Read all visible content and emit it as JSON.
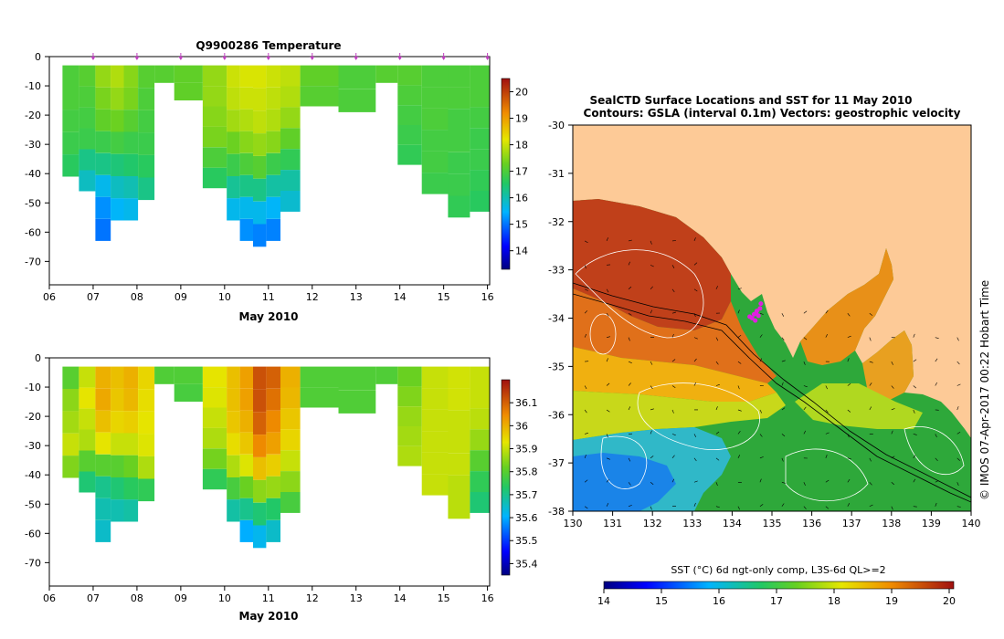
{
  "title": "Q9900286  Temperature",
  "chart_data": [
    {
      "type": "heatmap",
      "name": "temperature-section",
      "title": "Q9900286  Temperature",
      "xlabel": "May 2010",
      "ylabel": "",
      "x_ticks": [
        "06",
        "07",
        "08",
        "09",
        "10",
        "11",
        "12",
        "13",
        "14",
        "15",
        "16"
      ],
      "xlim": [
        6,
        16.05
      ],
      "y_ticks": [
        "0",
        "-10",
        "-20",
        "-30",
        "-40",
        "-50",
        "-60",
        "-70"
      ],
      "ylim": [
        -78,
        0
      ],
      "colorbar": {
        "ticks": [
          "14",
          "15",
          "16",
          "17",
          "18",
          "19",
          "20"
        ],
        "range": [
          13.3,
          20.5
        ]
      },
      "profiles": [
        {
          "day": 6.5,
          "depth": 41,
          "v": [
            17,
            17,
            16.9,
            16.8,
            16.6
          ]
        },
        {
          "day": 6.85,
          "depth": 46,
          "v": [
            17.1,
            17,
            16.9,
            16.8,
            16.3,
            15.9
          ]
        },
        {
          "day": 7.25,
          "depth": 63,
          "v": [
            17.6,
            17.4,
            17.2,
            16.8,
            16.3,
            15.6,
            15.2,
            15.0
          ]
        },
        {
          "day": 7.55,
          "depth": 56,
          "v": [
            17.8,
            17.6,
            17.3,
            16.9,
            16.4,
            15.9,
            15.5
          ]
        },
        {
          "day": 7.85,
          "depth": 56,
          "v": [
            17.5,
            17.4,
            17.1,
            16.8,
            16.5,
            16.0,
            15.6
          ]
        },
        {
          "day": 8.2,
          "depth": 49,
          "v": [
            17.1,
            17,
            16.9,
            16.8,
            16.6,
            16.3
          ]
        },
        {
          "day": 8.6,
          "depth": 9,
          "v": [
            17.1
          ]
        },
        {
          "day": 9.1,
          "depth": 15,
          "v": [
            17.2,
            17.2
          ]
        },
        {
          "day": 9.9,
          "depth": 45,
          "v": [
            17.6,
            17.6,
            17.5,
            17.4,
            17.0,
            16.6
          ]
        },
        {
          "day": 10.2,
          "depth": 56,
          "v": [
            18.0,
            17.9,
            17.7,
            17.3,
            16.8,
            16.2,
            15.6
          ]
        },
        {
          "day": 10.5,
          "depth": 63,
          "v": [
            18.1,
            18.0,
            17.8,
            17.5,
            17.0,
            16.3,
            15.6,
            15.2
          ]
        },
        {
          "day": 10.8,
          "depth": 65,
          "v": [
            18.1,
            18.0,
            17.9,
            17.6,
            17.1,
            16.3,
            15.6,
            15.1
          ]
        },
        {
          "day": 11.1,
          "depth": 63,
          "v": [
            18.0,
            17.9,
            17.8,
            17.5,
            16.8,
            16.1,
            15.5,
            15.1
          ]
        },
        {
          "day": 11.45,
          "depth": 53,
          "v": [
            17.9,
            17.8,
            17.6,
            17.2,
            16.7,
            16.1,
            15.8
          ]
        },
        {
          "day": 12.0,
          "depth": 17,
          "v": [
            17.2,
            17.1
          ]
        },
        {
          "day": 13.2,
          "depth": 19,
          "v": [
            17.0,
            17.0
          ]
        },
        {
          "day": 13.7,
          "depth": 9,
          "v": [
            17.1
          ]
        },
        {
          "day": 14.2,
          "depth": 37,
          "v": [
            17.1,
            17.0,
            16.9,
            16.8,
            16.7
          ]
        },
        {
          "day": 14.8,
          "depth": 47,
          "v": [
            17.0,
            17.0,
            17.0,
            16.9,
            16.9,
            16.8
          ]
        },
        {
          "day": 15.4,
          "depth": 55,
          "v": [
            17.0,
            17.0,
            16.9,
            16.9,
            16.8,
            16.8,
            16.7
          ]
        },
        {
          "day": 15.8,
          "depth": 53,
          "v": [
            17.0,
            17.0,
            16.9,
            16.8,
            16.8,
            16.7,
            16.6
          ]
        }
      ],
      "markers": [
        7,
        8,
        9,
        10,
        11,
        12,
        13,
        14,
        15,
        16
      ]
    },
    {
      "type": "heatmap",
      "name": "salinity-section",
      "title": "",
      "xlabel": "May 2010",
      "ylabel": "",
      "x_ticks": [
        "06",
        "07",
        "08",
        "09",
        "10",
        "11",
        "12",
        "13",
        "14",
        "15",
        "16"
      ],
      "xlim": [
        6,
        16.05
      ],
      "y_ticks": [
        "0",
        "-10",
        "-20",
        "-30",
        "-40",
        "-50",
        "-60",
        "-70"
      ],
      "ylim": [
        -78,
        0
      ],
      "colorbar": {
        "ticks": [
          "35.4",
          "35.5",
          "35.6",
          "35.7",
          "35.8",
          "35.9",
          "36",
          "36.1"
        ],
        "range": [
          35.35,
          36.2
        ]
      },
      "profiles": [
        {
          "day": 6.5,
          "depth": 41,
          "v": [
            35.8,
            35.85,
            35.87,
            35.9,
            35.84
          ]
        },
        {
          "day": 6.85,
          "depth": 46,
          "v": [
            35.9,
            35.93,
            35.9,
            35.88,
            35.8,
            35.72
          ]
        },
        {
          "day": 7.25,
          "depth": 63,
          "v": [
            36.0,
            36.01,
            35.98,
            35.93,
            35.8,
            35.7,
            35.67,
            35.65
          ]
        },
        {
          "day": 7.55,
          "depth": 56,
          "v": [
            35.98,
            35.97,
            35.95,
            35.9,
            35.8,
            35.72,
            35.67
          ]
        },
        {
          "day": 7.85,
          "depth": 56,
          "v": [
            36.0,
            35.99,
            35.96,
            35.9,
            35.82,
            35.74,
            35.68
          ]
        },
        {
          "day": 8.2,
          "depth": 49,
          "v": [
            35.95,
            35.94,
            35.93,
            35.92,
            35.88,
            35.75
          ]
        },
        {
          "day": 8.6,
          "depth": 9,
          "v": [
            35.79
          ]
        },
        {
          "day": 9.1,
          "depth": 15,
          "v": [
            35.79,
            35.78
          ]
        },
        {
          "day": 9.9,
          "depth": 45,
          "v": [
            35.93,
            35.92,
            35.9,
            35.88,
            35.83,
            35.75
          ]
        },
        {
          "day": 10.2,
          "depth": 56,
          "v": [
            35.98,
            35.98,
            35.97,
            35.94,
            35.88,
            35.78,
            35.68
          ]
        },
        {
          "day": 10.5,
          "depth": 63,
          "v": [
            36.02,
            36.02,
            36.0,
            35.97,
            35.92,
            35.82,
            35.7,
            35.6
          ]
        },
        {
          "day": 10.8,
          "depth": 65,
          "v": [
            36.12,
            36.12,
            36.1,
            36.05,
            35.98,
            35.85,
            35.72,
            35.62
          ]
        },
        {
          "day": 11.1,
          "depth": 63,
          "v": [
            36.1,
            36.08,
            36.05,
            36.02,
            35.96,
            35.86,
            35.73,
            35.65
          ]
        },
        {
          "day": 11.45,
          "depth": 53,
          "v": [
            36.0,
            35.99,
            35.97,
            35.95,
            35.9,
            35.85,
            35.78
          ]
        },
        {
          "day": 12.0,
          "depth": 17,
          "v": [
            35.79,
            35.79
          ]
        },
        {
          "day": 13.2,
          "depth": 19,
          "v": [
            35.79,
            35.79
          ]
        },
        {
          "day": 13.7,
          "depth": 9,
          "v": [
            35.79
          ]
        },
        {
          "day": 14.2,
          "depth": 37,
          "v": [
            35.82,
            35.84,
            35.86,
            35.87,
            35.88
          ]
        },
        {
          "day": 14.8,
          "depth": 47,
          "v": [
            35.9,
            35.9,
            35.9,
            35.9,
            35.9,
            35.9
          ]
        },
        {
          "day": 15.4,
          "depth": 55,
          "v": [
            35.91,
            35.91,
            35.9,
            35.9,
            35.9,
            35.89,
            35.89
          ]
        },
        {
          "day": 15.8,
          "depth": 53,
          "v": [
            35.9,
            35.9,
            35.89,
            35.86,
            35.8,
            35.75,
            35.72
          ]
        }
      ]
    },
    {
      "type": "heatmap",
      "name": "sst-map",
      "title": "SealCTD Surface Locations and SST for 11 May 2010",
      "subtitle": "Contours: GSLA (interval 0.1m) Vectors: geostrophic velocity",
      "x_ticks": [
        "130",
        "131",
        "132",
        "133",
        "134",
        "135",
        "136",
        "137",
        "138",
        "139",
        "140"
      ],
      "xlim": [
        130,
        140
      ],
      "y_ticks": [
        "-30",
        "-31",
        "-32",
        "-33",
        "-34",
        "-35",
        "-36",
        "-37",
        "-38"
      ],
      "ylim": [
        -38,
        -30
      ],
      "colorbar_label": "SST (°C) 6d ngt-only comp, L3S-6d QL>=2",
      "colorbar": {
        "ticks": [
          "14",
          "15",
          "16",
          "17",
          "18",
          "19",
          "20"
        ],
        "range": [
          14,
          20
        ]
      },
      "seal_positions": [
        {
          "lon": 134.55,
          "lat": -33.92
        },
        {
          "lon": 134.62,
          "lat": -33.85
        },
        {
          "lon": 134.7,
          "lat": -33.8
        },
        {
          "lon": 134.5,
          "lat": -34.0
        },
        {
          "lon": 134.58,
          "lat": -34.05
        },
        {
          "lon": 134.66,
          "lat": -33.95
        },
        {
          "lon": 134.44,
          "lat": -33.97
        },
        {
          "lon": 134.72,
          "lat": -33.7
        },
        {
          "lon": 134.6,
          "lat": -33.9
        }
      ]
    }
  ],
  "credit": "© IMOS 07-Apr-2017 00:22 Hobart Time"
}
